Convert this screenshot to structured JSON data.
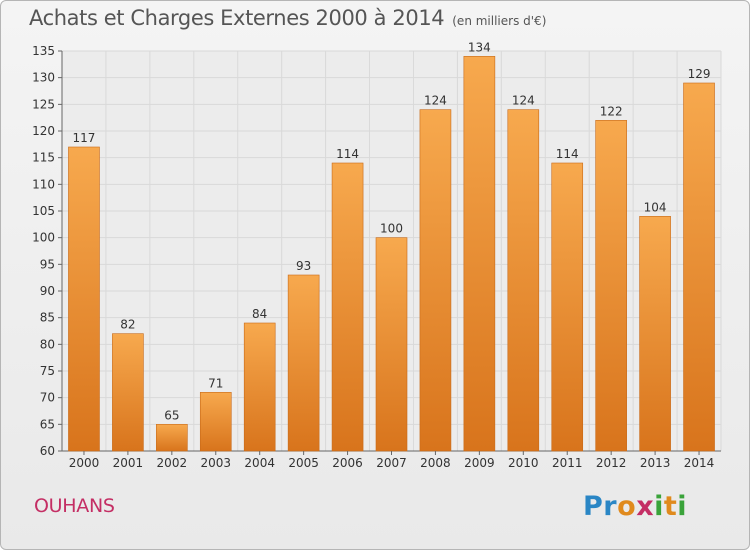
{
  "header": {
    "title": "Achats et Charges Externes 2000 à 2014",
    "subtitle": "(en milliers d'€)"
  },
  "footer": {
    "commune": "OUHANS",
    "logo": "Proxiti"
  },
  "colors": {
    "bar_top": "#f7a94e",
    "bar_bottom": "#d8741c",
    "grid": "#d9d9d9",
    "commune": "#c42e64"
  },
  "chart_data": {
    "type": "bar",
    "title": "Achats et Charges Externes 2000 à 2014",
    "subtitle": "(en milliers d'€)",
    "categories": [
      "2000",
      "2001",
      "2002",
      "2003",
      "2004",
      "2005",
      "2006",
      "2007",
      "2008",
      "2009",
      "2010",
      "2011",
      "2012",
      "2013",
      "2014"
    ],
    "values": [
      117,
      82,
      65,
      71,
      84,
      93,
      114,
      100,
      124,
      134,
      124,
      114,
      122,
      104,
      129
    ],
    "ylim": [
      60,
      135
    ],
    "yticks": [
      60,
      65,
      70,
      75,
      80,
      85,
      90,
      95,
      100,
      105,
      110,
      115,
      120,
      125,
      130,
      135
    ],
    "grid": true,
    "data_labels": true
  }
}
